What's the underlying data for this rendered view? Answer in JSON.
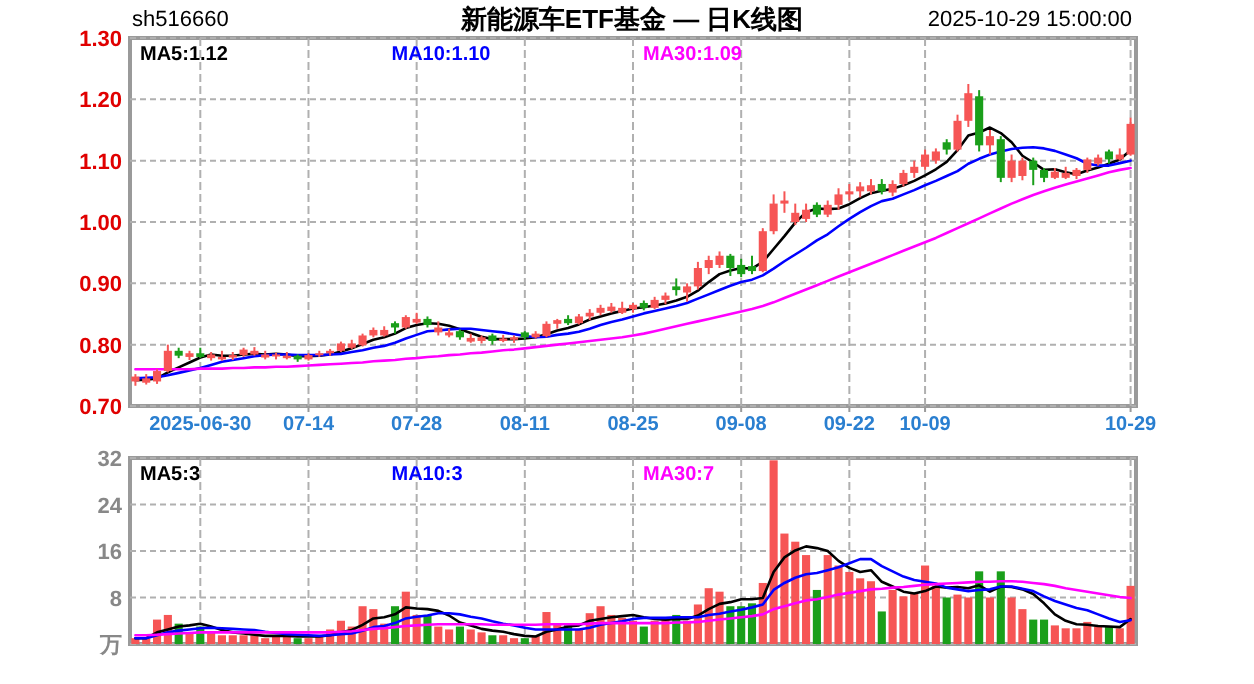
{
  "chart_data": [
    {
      "type": "candlestick",
      "title": "新能源车ETF基金 — 日K线图",
      "annotations": [
        "sh516660",
        "2025-10-29 15:00:00"
      ],
      "categories": [
        null,
        null,
        null,
        null,
        null,
        null,
        "2025-06-30",
        null,
        null,
        null,
        null,
        null,
        null,
        null,
        null,
        null,
        "07-14",
        null,
        null,
        null,
        null,
        null,
        null,
        null,
        null,
        null,
        "07-28",
        null,
        null,
        null,
        null,
        null,
        null,
        null,
        null,
        null,
        "08-11",
        null,
        null,
        null,
        null,
        null,
        null,
        null,
        null,
        null,
        "08-25",
        null,
        null,
        null,
        null,
        null,
        null,
        null,
        null,
        null,
        "09-08",
        null,
        null,
        null,
        null,
        null,
        null,
        null,
        null,
        null,
        "09-22",
        null,
        null,
        null,
        null,
        null,
        null,
        "10-09",
        null,
        null,
        null,
        null,
        null,
        null,
        null,
        null,
        null,
        null,
        null,
        null,
        null,
        null,
        null,
        null,
        null,
        null,
        "10-29"
      ],
      "ohlc": [
        [
          0.74,
          0.752,
          0.733,
          0.748
        ],
        [
          0.738,
          0.752,
          0.735,
          0.745
        ],
        [
          0.74,
          0.76,
          0.736,
          0.757
        ],
        [
          0.757,
          0.8,
          0.755,
          0.79
        ],
        [
          0.79,
          0.795,
          0.778,
          0.782
        ],
        [
          0.78,
          0.79,
          0.775,
          0.786
        ],
        [
          0.786,
          0.795,
          0.778,
          0.78
        ],
        [
          0.778,
          0.788,
          0.774,
          0.784
        ],
        [
          0.776,
          0.79,
          0.774,
          0.78
        ],
        [
          0.779,
          0.788,
          0.775,
          0.783
        ],
        [
          0.783,
          0.795,
          0.78,
          0.792
        ],
        [
          0.784,
          0.796,
          0.782,
          0.79
        ],
        [
          0.779,
          0.79,
          0.776,
          0.784
        ],
        [
          0.781,
          0.787,
          0.776,
          0.784
        ],
        [
          0.778,
          0.788,
          0.776,
          0.782
        ],
        [
          0.782,
          0.784,
          0.772,
          0.776
        ],
        [
          0.776,
          0.786,
          0.774,
          0.783
        ],
        [
          0.783,
          0.79,
          0.78,
          0.786
        ],
        [
          0.786,
          0.793,
          0.782,
          0.79
        ],
        [
          0.79,
          0.805,
          0.788,
          0.802
        ],
        [
          0.795,
          0.808,
          0.793,
          0.802
        ],
        [
          0.799,
          0.818,
          0.797,
          0.815
        ],
        [
          0.815,
          0.828,
          0.812,
          0.824
        ],
        [
          0.815,
          0.83,
          0.813,
          0.824
        ],
        [
          0.835,
          0.838,
          0.818,
          0.828
        ],
        [
          0.828,
          0.848,
          0.826,
          0.845
        ],
        [
          0.836,
          0.852,
          0.834,
          0.842
        ],
        [
          0.842,
          0.846,
          0.828,
          0.832
        ],
        [
          0.82,
          0.838,
          0.815,
          0.828
        ],
        [
          0.815,
          0.826,
          0.812,
          0.82
        ],
        [
          0.822,
          0.825,
          0.808,
          0.812
        ],
        [
          0.805,
          0.818,
          0.803,
          0.811
        ],
        [
          0.806,
          0.815,
          0.802,
          0.812
        ],
        [
          0.815,
          0.818,
          0.8,
          0.806
        ],
        [
          0.806,
          0.816,
          0.804,
          0.81
        ],
        [
          0.808,
          0.815,
          0.803,
          0.812
        ],
        [
          0.82,
          0.822,
          0.808,
          0.812
        ],
        [
          0.812,
          0.822,
          0.81,
          0.818
        ],
        [
          0.814,
          0.838,
          0.812,
          0.834
        ],
        [
          0.834,
          0.842,
          0.826,
          0.84
        ],
        [
          0.842,
          0.848,
          0.832,
          0.835
        ],
        [
          0.835,
          0.85,
          0.833,
          0.846
        ],
        [
          0.846,
          0.858,
          0.84,
          0.852
        ],
        [
          0.852,
          0.865,
          0.848,
          0.86
        ],
        [
          0.855,
          0.868,
          0.852,
          0.862
        ],
        [
          0.852,
          0.87,
          0.85,
          0.86
        ],
        [
          0.858,
          0.868,
          0.852,
          0.865
        ],
        [
          0.868,
          0.872,
          0.856,
          0.86
        ],
        [
          0.86,
          0.878,
          0.858,
          0.873
        ],
        [
          0.873,
          0.885,
          0.866,
          0.88
        ],
        [
          0.895,
          0.908,
          0.88,
          0.889
        ],
        [
          0.885,
          0.9,
          0.87,
          0.895
        ],
        [
          0.895,
          0.935,
          0.89,
          0.925
        ],
        [
          0.925,
          0.945,
          0.915,
          0.938
        ],
        [
          0.93,
          0.952,
          0.925,
          0.945
        ],
        [
          0.945,
          0.948,
          0.912,
          0.925
        ],
        [
          0.93,
          0.94,
          0.91,
          0.915
        ],
        [
          0.928,
          0.945,
          0.915,
          0.92
        ],
        [
          0.92,
          0.99,
          0.918,
          0.985
        ],
        [
          0.985,
          1.045,
          0.98,
          1.03
        ],
        [
          1.03,
          1.05,
          1.015,
          1.035
        ],
        [
          1.0,
          1.03,
          0.995,
          1.015
        ],
        [
          1.005,
          1.03,
          1.0,
          1.02
        ],
        [
          1.028,
          1.032,
          1.008,
          1.012
        ],
        [
          1.012,
          1.035,
          1.008,
          1.028
        ],
        [
          1.028,
          1.055,
          1.02,
          1.045
        ],
        [
          1.045,
          1.062,
          1.035,
          1.05
        ],
        [
          1.05,
          1.065,
          1.04,
          1.058
        ],
        [
          1.05,
          1.07,
          1.045,
          1.06
        ],
        [
          1.062,
          1.07,
          1.045,
          1.05
        ],
        [
          1.048,
          1.068,
          1.042,
          1.062
        ],
        [
          1.062,
          1.085,
          1.058,
          1.08
        ],
        [
          1.08,
          1.1,
          1.072,
          1.09
        ],
        [
          1.09,
          1.118,
          1.085,
          1.11
        ],
        [
          1.1,
          1.12,
          1.095,
          1.115
        ],
        [
          1.13,
          1.135,
          1.11,
          1.118
        ],
        [
          1.118,
          1.175,
          1.115,
          1.165
        ],
        [
          1.165,
          1.225,
          1.155,
          1.21
        ],
        [
          1.205,
          1.215,
          1.115,
          1.125
        ],
        [
          1.125,
          1.15,
          1.11,
          1.14
        ],
        [
          1.135,
          1.14,
          1.065,
          1.072
        ],
        [
          1.072,
          1.11,
          1.065,
          1.1
        ],
        [
          1.075,
          1.105,
          1.068,
          1.1
        ],
        [
          1.1,
          1.105,
          1.06,
          1.085
        ],
        [
          1.085,
          1.088,
          1.065,
          1.072
        ],
        [
          1.072,
          1.088,
          1.07,
          1.082
        ],
        [
          1.072,
          1.09,
          1.07,
          1.08
        ],
        [
          1.075,
          1.088,
          1.07,
          1.085
        ],
        [
          1.085,
          1.105,
          1.08,
          1.102
        ],
        [
          1.095,
          1.11,
          1.092,
          1.105
        ],
        [
          1.115,
          1.118,
          1.095,
          1.102
        ],
        [
          1.102,
          1.12,
          1.1,
          1.11
        ],
        [
          1.11,
          1.17,
          1.108,
          1.16
        ]
      ],
      "colors": [
        "#f65555",
        "#f65555",
        "#f65555",
        "#f65555",
        "#1a9f1a",
        "#f65555",
        "#1a9f1a",
        "#f65555",
        "#f65555",
        "#f65555",
        "#f65555",
        "#f65555",
        "#f65555",
        "#f65555",
        "#f65555",
        "#1a9f1a",
        "#f65555",
        "#f65555",
        "#f65555",
        "#f65555",
        "#f65555",
        "#f65555",
        "#f65555",
        "#f65555",
        "#1a9f1a",
        "#f65555",
        "#f65555",
        "#1a9f1a",
        "#f65555",
        "#f65555",
        "#1a9f1a",
        "#f65555",
        "#f65555",
        "#1a9f1a",
        "#f65555",
        "#f65555",
        "#1a9f1a",
        "#f65555",
        "#f65555",
        "#f65555",
        "#1a9f1a",
        "#f65555",
        "#f65555",
        "#f65555",
        "#f65555",
        "#f65555",
        "#f65555",
        "#1a9f1a",
        "#f65555",
        "#f65555",
        "#1a9f1a",
        "#f65555",
        "#f65555",
        "#f65555",
        "#f65555",
        "#1a9f1a",
        "#1a9f1a",
        "#1a9f1a",
        "#f65555",
        "#f65555",
        "#f65555",
        "#f65555",
        "#f65555",
        "#1a9f1a",
        "#f65555",
        "#f65555",
        "#f65555",
        "#f65555",
        "#f65555",
        "#1a9f1a",
        "#f65555",
        "#f65555",
        "#f65555",
        "#f65555",
        "#f65555",
        "#1a9f1a",
        "#f65555",
        "#f65555",
        "#1a9f1a",
        "#f65555",
        "#1a9f1a",
        "#f65555",
        "#f65555",
        "#1a9f1a",
        "#1a9f1a",
        "#f65555",
        "#f65555",
        "#f65555",
        "#f65555",
        "#f65555",
        "#1a9f1a",
        "#f65555",
        "#f65555"
      ],
      "series": [
        {
          "name": "MA5:1.12",
          "type": "line",
          "color": "#000000",
          "values": [
            0.742,
            0.743,
            0.745,
            0.755,
            0.763,
            0.771,
            0.779,
            0.784,
            0.782,
            0.782,
            0.784,
            0.785,
            0.784,
            0.785,
            0.784,
            0.781,
            0.781,
            0.782,
            0.784,
            0.789,
            0.794,
            0.801,
            0.808,
            0.812,
            0.818,
            0.827,
            0.832,
            0.835,
            0.834,
            0.831,
            0.825,
            0.819,
            0.813,
            0.809,
            0.809,
            0.809,
            0.81,
            0.812,
            0.817,
            0.823,
            0.827,
            0.833,
            0.841,
            0.846,
            0.851,
            0.855,
            0.859,
            0.861,
            0.864,
            0.867,
            0.872,
            0.878,
            0.888,
            0.902,
            0.915,
            0.921,
            0.925,
            0.924,
            0.935,
            0.956,
            0.977,
            0.999,
            1.016,
            1.022,
            1.021,
            1.022,
            1.029,
            1.039,
            1.047,
            1.051,
            1.054,
            1.06,
            1.067,
            1.076,
            1.086,
            1.098,
            1.117,
            1.141,
            1.146,
            1.154,
            1.145,
            1.13,
            1.108,
            1.097,
            1.085,
            1.086,
            1.081,
            1.078,
            1.084,
            1.089,
            1.095,
            1.102,
            1.117
          ]
        },
        {
          "name": "MA10:1.10",
          "type": "line",
          "color": "#0000ff",
          "values": [
            0.745,
            0.746,
            0.747,
            0.75,
            0.754,
            0.758,
            0.762,
            0.767,
            0.772,
            0.775,
            0.778,
            0.781,
            0.783,
            0.784,
            0.784,
            0.783,
            0.783,
            0.783,
            0.784,
            0.785,
            0.788,
            0.791,
            0.795,
            0.798,
            0.803,
            0.81,
            0.816,
            0.822,
            0.823,
            0.825,
            0.826,
            0.826,
            0.824,
            0.822,
            0.82,
            0.817,
            0.814,
            0.812,
            0.813,
            0.816,
            0.818,
            0.821,
            0.826,
            0.832,
            0.837,
            0.841,
            0.846,
            0.851,
            0.855,
            0.859,
            0.863,
            0.868,
            0.875,
            0.882,
            0.889,
            0.896,
            0.902,
            0.906,
            0.913,
            0.924,
            0.936,
            0.947,
            0.958,
            0.97,
            0.98,
            0.993,
            1.005,
            1.016,
            1.026,
            1.034,
            1.038,
            1.045,
            1.052,
            1.06,
            1.067,
            1.075,
            1.083,
            1.095,
            1.103,
            1.11,
            1.115,
            1.119,
            1.121,
            1.122,
            1.12,
            1.116,
            1.11,
            1.104,
            1.095,
            1.092,
            1.092,
            1.096,
            1.1
          ]
        },
        {
          "name": "MA30:1.09",
          "type": "line",
          "color": "#ff00ff",
          "values": [
            0.76,
            0.76,
            0.76,
            0.76,
            0.76,
            0.76,
            0.761,
            0.761,
            0.761,
            0.762,
            0.762,
            0.763,
            0.763,
            0.764,
            0.764,
            0.765,
            0.766,
            0.767,
            0.768,
            0.769,
            0.77,
            0.771,
            0.773,
            0.774,
            0.775,
            0.777,
            0.778,
            0.78,
            0.781,
            0.783,
            0.784,
            0.786,
            0.787,
            0.789,
            0.791,
            0.792,
            0.794,
            0.796,
            0.798,
            0.8,
            0.802,
            0.804,
            0.806,
            0.808,
            0.81,
            0.812,
            0.815,
            0.818,
            0.822,
            0.826,
            0.83,
            0.834,
            0.838,
            0.842,
            0.846,
            0.85,
            0.854,
            0.858,
            0.863,
            0.869,
            0.876,
            0.883,
            0.89,
            0.897,
            0.904,
            0.911,
            0.918,
            0.925,
            0.932,
            0.939,
            0.946,
            0.953,
            0.96,
            0.967,
            0.974,
            0.982,
            0.99,
            0.998,
            1.006,
            1.014,
            1.022,
            1.03,
            1.037,
            1.044,
            1.05,
            1.056,
            1.061,
            1.066,
            1.071,
            1.076,
            1.081,
            1.085,
            1.088
          ]
        }
      ],
      "ylim": [
        0.7,
        1.3
      ],
      "yticks": [
        {
          "value": 0.7,
          "label": "0.70"
        },
        {
          "value": 0.8,
          "label": "0.80"
        },
        {
          "value": 0.9,
          "label": "0.90"
        },
        {
          "value": 1.0,
          "label": "1.00"
        },
        {
          "value": 1.1,
          "label": "1.10"
        },
        {
          "value": 1.2,
          "label": "1.20"
        },
        {
          "value": 1.3,
          "label": "1.30"
        }
      ],
      "grid": true,
      "legend": "top left"
    },
    {
      "type": "bar",
      "categories": [
        null,
        null,
        null,
        null,
        null,
        null,
        null,
        null,
        null,
        null,
        null,
        null,
        null,
        null,
        null,
        null,
        null,
        null,
        null,
        null,
        null,
        null,
        null,
        null,
        null,
        null,
        null,
        null,
        null,
        null,
        null,
        null,
        null,
        null,
        null,
        null,
        null,
        null,
        null,
        null,
        null,
        null,
        null,
        null,
        null,
        null,
        null,
        null,
        null,
        null,
        null,
        null,
        null,
        null,
        null,
        null,
        null,
        null,
        null,
        null,
        null,
        null,
        null,
        null,
        null,
        null,
        null,
        null,
        null,
        null,
        null,
        null,
        null,
        null,
        null,
        null,
        null,
        null,
        null,
        null,
        null,
        null,
        null,
        null,
        null,
        null,
        null,
        null,
        null,
        null,
        null,
        null,
        null
      ],
      "values": [
        1,
        1,
        4.2,
        5,
        3.5,
        2,
        3,
        2,
        1.5,
        1.5,
        1.5,
        1.5,
        1,
        1.5,
        1.5,
        1,
        1,
        1.5,
        2.5,
        4,
        3,
        6.5,
        6,
        3.5,
        6.5,
        9,
        5,
        5,
        3,
        2.5,
        3,
        2.5,
        2,
        1.5,
        1.5,
        1,
        1,
        1.5,
        5.5,
        3.5,
        3.5,
        2.5,
        5.3,
        6.5,
        5,
        4.5,
        4,
        3,
        4,
        4.5,
        5,
        4,
        6.8,
        9.6,
        9,
        6.5,
        6.5,
        7,
        10.5,
        31.6,
        19,
        17.6,
        15.3,
        9.3,
        15.3,
        13.5,
        12.4,
        11.3,
        10.8,
        5.6,
        9.3,
        8.2,
        8.8,
        13.5,
        10,
        8,
        8.5,
        8,
        12.5,
        8,
        12.5,
        8,
        6,
        4.2,
        4.2,
        3.2,
        2.7,
        2.7,
        3.8,
        3,
        3,
        2.7,
        10
      ],
      "colors": [
        "#f65555",
        "#f65555",
        "#f65555",
        "#f65555",
        "#1a9f1a",
        "#f65555",
        "#1a9f1a",
        "#f65555",
        "#f65555",
        "#f65555",
        "#f65555",
        "#f65555",
        "#f65555",
        "#f65555",
        "#f65555",
        "#1a9f1a",
        "#f65555",
        "#f65555",
        "#f65555",
        "#f65555",
        "#f65555",
        "#f65555",
        "#f65555",
        "#f65555",
        "#1a9f1a",
        "#f65555",
        "#f65555",
        "#1a9f1a",
        "#f65555",
        "#f65555",
        "#1a9f1a",
        "#f65555",
        "#f65555",
        "#1a9f1a",
        "#f65555",
        "#f65555",
        "#1a9f1a",
        "#f65555",
        "#f65555",
        "#f65555",
        "#1a9f1a",
        "#f65555",
        "#f65555",
        "#f65555",
        "#f65555",
        "#f65555",
        "#f65555",
        "#1a9f1a",
        "#f65555",
        "#f65555",
        "#1a9f1a",
        "#f65555",
        "#f65555",
        "#f65555",
        "#f65555",
        "#1a9f1a",
        "#1a9f1a",
        "#1a9f1a",
        "#f65555",
        "#f65555",
        "#f65555",
        "#f65555",
        "#f65555",
        "#1a9f1a",
        "#f65555",
        "#f65555",
        "#f65555",
        "#f65555",
        "#f65555",
        "#1a9f1a",
        "#f65555",
        "#f65555",
        "#f65555",
        "#f65555",
        "#f65555",
        "#1a9f1a",
        "#f65555",
        "#f65555",
        "#1a9f1a",
        "#f65555",
        "#1a9f1a",
        "#f65555",
        "#f65555",
        "#1a9f1a",
        "#1a9f1a",
        "#f65555",
        "#f65555",
        "#f65555",
        "#f65555",
        "#f65555",
        "#1a9f1a",
        "#f65555",
        "#f65555"
      ],
      "series": [
        {
          "name": "MA5:3",
          "type": "line",
          "color": "#000000",
          "values": [
            1,
            1,
            2,
            2.5,
            3,
            3.2,
            3.5,
            3,
            2.4,
            2,
            1.8,
            1.6,
            1.4,
            1.4,
            1.4,
            1.3,
            1.3,
            1.3,
            1.5,
            2,
            2.4,
            3.3,
            4.4,
            4.6,
            5.1,
            6.3,
            6.1,
            6,
            5.7,
            4.9,
            3.7,
            3.2,
            2.6,
            2.3,
            2.1,
            1.7,
            1.4,
            1.3,
            2.1,
            2.5,
            3,
            3.2,
            4,
            4.3,
            4.6,
            4.8,
            5,
            4.6,
            4.3,
            4.2,
            4.3,
            4.3,
            4.9,
            6,
            6.9,
            7.2,
            7.7,
            7.7,
            7.9,
            12.4,
            14.9,
            16.1,
            16.8,
            16.5,
            16,
            14.3,
            13.1,
            12.4,
            12.7,
            10.7,
            9.9,
            9,
            8.7,
            9.1,
            9.9,
            9.7,
            9.8,
            9.6,
            10.1,
            9,
            9.9,
            9.8,
            9.4,
            8.6,
            7,
            5.1,
            4,
            3.4,
            3.3,
            3.1,
            3,
            2.9,
            4.3
          ]
        },
        {
          "name": "MA10:3",
          "type": "line",
          "color": "#0000ff",
          "values": [
            1,
            1,
            1.5,
            2,
            2.3,
            2.5,
            2.7,
            2.8,
            2.7,
            2.6,
            2.5,
            2.4,
            2.1,
            1.9,
            1.7,
            1.6,
            1.5,
            1.4,
            1.5,
            1.7,
            1.8,
            2.3,
            2.9,
            3.1,
            3.6,
            4.4,
            4.7,
            4.9,
            5.3,
            5.3,
            5.1,
            4.7,
            4.4,
            3.9,
            3.5,
            3.2,
            2.8,
            2.5,
            2.5,
            2.5,
            2.5,
            2.5,
            2.8,
            3.3,
            3.6,
            3.9,
            4.3,
            4.5,
            4.5,
            4.5,
            4.6,
            4.6,
            4.6,
            5,
            5.2,
            5.6,
            5.9,
            6.3,
            6.8,
            9.3,
            10.5,
            11.4,
            12,
            12.2,
            12.7,
            13.2,
            13.9,
            14.6,
            14.6,
            13.4,
            12.5,
            11.6,
            11,
            10.7,
            10.4,
            9.7,
            9.4,
            9.1,
            9.3,
            9.4,
            9.9,
            9.9,
            9.5,
            9.1,
            8.2,
            7.4,
            6.8,
            6.2,
            5.8,
            5.1,
            4.4,
            3.8,
            4.1
          ]
        },
        {
          "name": "MA30:7",
          "type": "line",
          "color": "#ff00ff",
          "values": [
            1.5,
            1.5,
            1.6,
            1.7,
            1.8,
            1.9,
            2,
            2,
            2,
            2,
            2,
            2,
            2,
            2,
            2,
            2,
            2,
            2,
            2,
            2.1,
            2.2,
            2.4,
            2.6,
            2.7,
            2.9,
            3.1,
            3.2,
            3.3,
            3.4,
            3.4,
            3.4,
            3.4,
            3.4,
            3.3,
            3.3,
            3.3,
            3.3,
            3.3,
            3.4,
            3.4,
            3.4,
            3.4,
            3.5,
            3.6,
            3.6,
            3.6,
            3.6,
            3.6,
            3.6,
            3.6,
            3.7,
            3.7,
            3.8,
            4,
            4.2,
            4.4,
            4.6,
            4.8,
            5.1,
            6,
            6.5,
            7,
            7.5,
            7.7,
            8.1,
            8.5,
            8.8,
            9.1,
            9.4,
            9.5,
            9.7,
            9.8,
            10,
            10.2,
            10.3,
            10.4,
            10.5,
            10.6,
            10.7,
            10.7,
            10.8,
            10.8,
            10.7,
            10.5,
            10.3,
            10,
            9.6,
            9.3,
            9,
            8.7,
            8.4,
            8.1,
            7.9
          ]
        }
      ],
      "ylim": [
        0,
        32
      ],
      "yticks": [
        {
          "value": 0,
          "label": "万"
        },
        8,
        16,
        24,
        32
      ],
      "grid": true,
      "legend": "top left",
      "tick_labels": "y"
    }
  ]
}
